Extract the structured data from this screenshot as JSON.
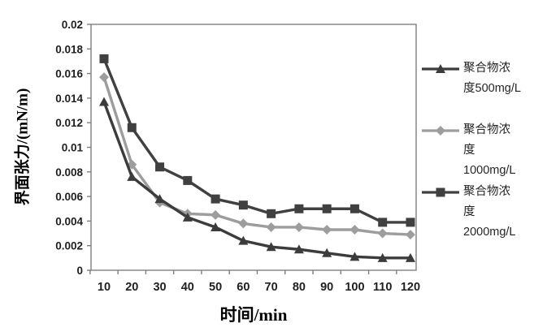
{
  "chart_data": {
    "type": "line",
    "title": "",
    "xlabel": "时间/min",
    "ylabel": "界面张力/(mN/m)",
    "x": [
      10,
      20,
      30,
      40,
      50,
      60,
      70,
      80,
      90,
      100,
      110,
      120
    ],
    "xtick_labels": [
      "10",
      "20",
      "30",
      "40",
      "50",
      "60",
      "70",
      "80",
      "90",
      "100",
      "110",
      "120"
    ],
    "ylim": [
      0,
      0.02
    ],
    "ytick_step": 0.002,
    "ytick_labels": [
      "0",
      "0.002",
      "0.004",
      "0.006",
      "0.008",
      "0.01",
      "0.012",
      "0.014",
      "0.016",
      "0.018",
      "0.02"
    ],
    "grid": false,
    "legend_position": "right",
    "axis_color": "#7f7f7f",
    "plot_border": true,
    "series": [
      {
        "name": "聚合物浓度500mg/L",
        "legend_lines": [
          "聚合物浓",
          "度500mg/L"
        ],
        "marker": "triangle",
        "color": "#3c3c3c",
        "values": [
          0.0137,
          0.0076,
          0.0058,
          0.0043,
          0.0035,
          0.0024,
          0.0019,
          0.0017,
          0.0014,
          0.0011,
          0.001,
          0.001
        ]
      },
      {
        "name": "聚合物浓度1000mg/L",
        "legend_lines": [
          "聚合物浓",
          "度",
          "1000mg/L"
        ],
        "marker": "diamond",
        "color": "#9d9d9d",
        "values": [
          0.0157,
          0.0086,
          0.0055,
          0.0046,
          0.0045,
          0.0038,
          0.0035,
          0.0035,
          0.0033,
          0.0033,
          0.003,
          0.0029
        ]
      },
      {
        "name": "聚合物浓度2000mg/L",
        "legend_lines": [
          "聚合物浓",
          "度",
          "2000mg/L"
        ],
        "marker": "square",
        "color": "#404040",
        "values": [
          0.0172,
          0.0116,
          0.0084,
          0.0073,
          0.0058,
          0.0053,
          0.0046,
          0.005,
          0.005,
          0.005,
          0.0039,
          0.0039
        ]
      }
    ],
    "draw_order": [
      1,
      0,
      2
    ]
  }
}
